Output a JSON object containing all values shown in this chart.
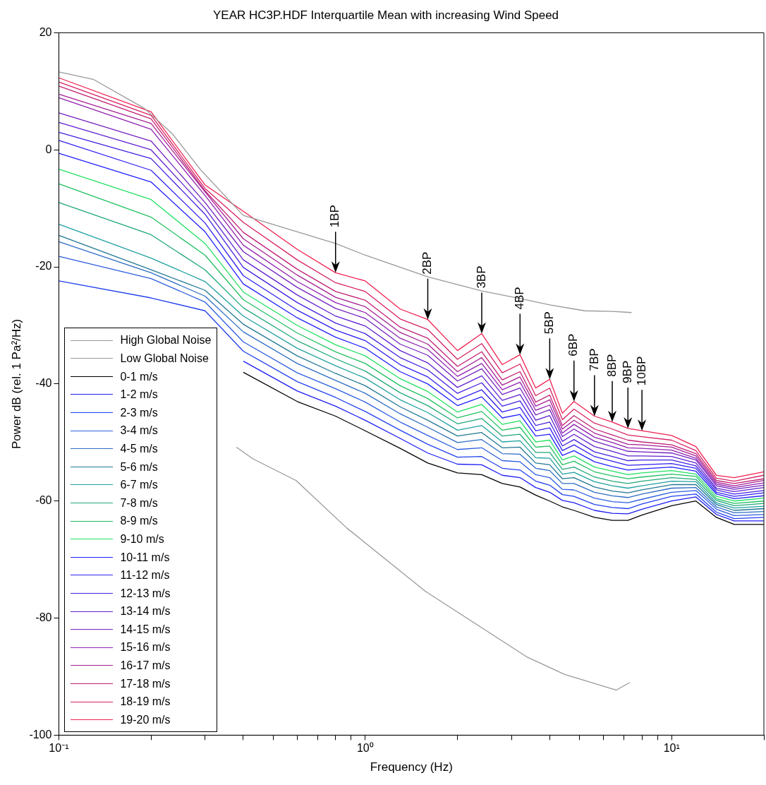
{
  "chart_data": {
    "type": "line",
    "title": "YEAR HC3P.HDF Interquartile Mean with increasing Wind Speed",
    "xlabel": "Frequency (Hz)",
    "ylabel": "Power dB (rel. 1 Pa²/Hz)",
    "log": "x",
    "legend": "bottom left",
    "marker": "none",
    "line_style": "solid",
    "xlim": [
      0.1,
      20
    ],
    "ylim": [
      -100,
      20
    ],
    "xticks": [
      {
        "value": 0.1,
        "label": "10⁻¹"
      },
      {
        "value": 0.2,
        "label": null
      },
      {
        "value": 0.3,
        "label": null
      },
      {
        "value": 0.4,
        "label": null
      },
      {
        "value": 0.5,
        "label": null
      },
      {
        "value": 0.6,
        "label": null
      },
      {
        "value": 0.7,
        "label": null
      },
      {
        "value": 0.8,
        "label": null
      },
      {
        "value": 0.9,
        "label": null
      },
      {
        "value": 1,
        "label": "10⁰"
      },
      {
        "value": 2,
        "label": null
      },
      {
        "value": 3,
        "label": null
      },
      {
        "value": 4,
        "label": null
      },
      {
        "value": 5,
        "label": null
      },
      {
        "value": 6,
        "label": null
      },
      {
        "value": 7,
        "label": null
      },
      {
        "value": 8,
        "label": null
      },
      {
        "value": 9,
        "label": null
      },
      {
        "value": 10,
        "label": "10¹"
      },
      {
        "value": 20,
        "label": null
      }
    ],
    "yticks": [
      -100,
      -80,
      -60,
      -40,
      -20,
      0,
      20
    ],
    "x": [
      0.1,
      0.2,
      0.3,
      0.4,
      0.6,
      0.8,
      1,
      1.3,
      1.6,
      2,
      2.4,
      2.8,
      3.2,
      3.6,
      4,
      4.4,
      4.8,
      5.6,
      6.4,
      7.2,
      8,
      10,
      12,
      14,
      16,
      20
    ],
    "series": [
      {
        "name": "High Global Noise",
        "color": "#999999",
        "x": [
          0.1,
          0.13,
          0.19,
          0.235,
          0.29,
          0.4,
          0.6,
          0.8,
          1,
          1.6,
          2.4,
          3.2,
          4,
          5.2,
          6.4,
          7.4
        ],
        "values": [
          13.3,
          12,
          7.1,
          2.7,
          -3.4,
          -11.2,
          -14,
          -16,
          -18,
          -21.7,
          -24.1,
          -25.4,
          -26.5,
          -27.5,
          -27.6,
          -27.8
        ]
      },
      {
        "name": "Low Global Noise",
        "color": "#999999",
        "x": [
          0.38,
          0.43,
          0.595,
          0.87,
          1.57,
          3.36,
          4.46,
          6.6,
          7.3
        ],
        "values": [
          -50.8,
          -52.8,
          -56.5,
          -64.6,
          -75.4,
          -86.6,
          -89.6,
          -92.3,
          -91
        ]
      },
      {
        "name": "0-1 m/s",
        "color": "#000000",
        "values": [
          null,
          null,
          null,
          -38,
          -43,
          -45.5,
          -48,
          -51,
          -53.5,
          -55.2,
          -55.5,
          -57,
          -57.6,
          -59,
          -60,
          -61,
          -61.6,
          -62.8,
          -63.3,
          -63.3,
          -62.4,
          -60.8,
          -60,
          -62.8,
          -64,
          -64
        ]
      },
      {
        "name": "1-2 m/s",
        "color": "#1c1cf5",
        "values": [
          null,
          null,
          null,
          -36.1,
          -41.2,
          -43.8,
          -46.2,
          -49.3,
          -51.8,
          -53.7,
          -53.8,
          -55.6,
          -56,
          -57.7,
          -58.5,
          -59.9,
          -60.3,
          -61.6,
          -62.1,
          -62.2,
          -61.4,
          -60,
          -59.3,
          -62.3,
          -63.4,
          -63.4
        ]
      },
      {
        "name": "2-3 m/s",
        "color": "#2040ee",
        "values": [
          -22.4,
          -25.3,
          -27.5,
          -34.4,
          -39.6,
          -42.3,
          -44.7,
          -47.9,
          -50.3,
          -52.5,
          -52.4,
          -54.4,
          -54.7,
          -56.6,
          -57.3,
          -58.9,
          -59.2,
          -60.6,
          -61.1,
          -61.3,
          -60.5,
          -59.2,
          -58.8,
          -61.9,
          -63,
          -62.8
        ]
      },
      {
        "name": "3-4 m/s",
        "color": "#2c5ee0",
        "values": [
          -18.2,
          -22,
          -26,
          -32.8,
          -38.1,
          -40.8,
          -43.1,
          -46.5,
          -48.8,
          -51.2,
          -50.9,
          -53.1,
          -53.3,
          -55.5,
          -56,
          -58,
          -58.1,
          -59.5,
          -60.1,
          -60.3,
          -59.7,
          -58.5,
          -58.2,
          -61.4,
          -62.5,
          -62.3
        ]
      },
      {
        "name": "4-5 m/s",
        "color": "#2c6cc4",
        "values": [
          -15.7,
          -21,
          -25,
          -31.1,
          -36.5,
          -39.4,
          -41.6,
          -45.1,
          -47.4,
          -50,
          -49.5,
          -51.9,
          -52,
          -54.4,
          -54.8,
          -57,
          -57,
          -58.5,
          -59.1,
          -59.4,
          -58.8,
          -57.8,
          -57.7,
          -61,
          -62,
          -61.8
        ]
      },
      {
        "name": "5-6 m/s",
        "color": "#207894",
        "values": [
          -14.6,
          -20.5,
          -24,
          -29.8,
          -35.2,
          -38.2,
          -40.3,
          -43.9,
          -46.2,
          -48.9,
          -48.3,
          -50.9,
          -50.8,
          -53.5,
          -53.8,
          -56.2,
          -56,
          -57.6,
          -58.3,
          -58.6,
          -58.1,
          -57.2,
          -57.2,
          -60.6,
          -61.6,
          -61.3
        ]
      },
      {
        "name": "6-7 m/s",
        "color": "#20a0a0",
        "values": [
          -12.7,
          -18.5,
          -22.5,
          -28.4,
          -33.9,
          -36.9,
          -39,
          -42.7,
          -44.9,
          -47.9,
          -47.1,
          -49.9,
          -49.7,
          -52.6,
          -52.7,
          -55.4,
          -55.1,
          -56.7,
          -57.4,
          -57.8,
          -57.4,
          -56.6,
          -56.7,
          -60.3,
          -61.2,
          -60.9
        ]
      },
      {
        "name": "7-8 m/s",
        "color": "#20a878",
        "values": [
          -9,
          -14.5,
          -20.5,
          -27,
          -32.6,
          -35.7,
          -37.8,
          -41.5,
          -43.7,
          -46.8,
          -45.9,
          -48.9,
          -48.6,
          -51.7,
          -51.7,
          -54.6,
          -54.2,
          -55.9,
          -56.6,
          -57,
          -56.6,
          -56,
          -56.3,
          -59.9,
          -60.8,
          -60.4
        ]
      },
      {
        "name": "8-9 m/s",
        "color": "#20c060",
        "values": [
          -5.8,
          -11.5,
          -18,
          -25.6,
          -31.3,
          -34.5,
          -36.5,
          -40.3,
          -42.5,
          -45.8,
          -44.7,
          -47.9,
          -47.4,
          -50.8,
          -50.6,
          -53.8,
          -53.2,
          -55,
          -55.7,
          -56.2,
          -55.9,
          -55.4,
          -55.8,
          -59.6,
          -60.4,
          -60
        ]
      },
      {
        "name": "9-10 m/s",
        "color": "#20e060",
        "values": [
          -3.3,
          -8.5,
          -16,
          -24.3,
          -30,
          -33.3,
          -35.2,
          -39.1,
          -41.3,
          -44.8,
          -43.5,
          -46.9,
          -46.3,
          -49.9,
          -49.6,
          -53,
          -52.3,
          -54.2,
          -54.9,
          -55.5,
          -55.2,
          -54.8,
          -55.4,
          -59.2,
          -60,
          -59.5
        ]
      },
      {
        "name": "10-11 m/s",
        "color": "#2020ff",
        "values": [
          -0.6,
          -5.5,
          -14,
          -22.9,
          -28.7,
          -32,
          -33.9,
          -37.9,
          -40,
          -43.7,
          -42.2,
          -45.8,
          -45.2,
          -48.9,
          -48.6,
          -52.2,
          -51.4,
          -53.3,
          -54.1,
          -54.7,
          -54.5,
          -54.2,
          -54.9,
          -58.8,
          -59.6,
          -59.1
        ]
      },
      {
        "name": "11-12 m/s",
        "color": "#3020f0",
        "values": [
          1.6,
          -3.5,
          -12.5,
          -21.5,
          -27.4,
          -30.8,
          -32.6,
          -36.7,
          -38.8,
          -42.7,
          -41,
          -44.8,
          -44,
          -48,
          -47.5,
          -51.4,
          -50.4,
          -52.4,
          -53.2,
          -53.9,
          -53.8,
          -53.6,
          -54.4,
          -58.5,
          -59.2,
          -58.6
        ]
      },
      {
        "name": "12-13 m/s",
        "color": "#4420e0",
        "values": [
          3,
          -1.5,
          -11,
          -20.1,
          -26.1,
          -29.6,
          -31.4,
          -35.5,
          -37.6,
          -41.6,
          -39.8,
          -43.8,
          -42.9,
          -47.1,
          -46.5,
          -50.6,
          -49.5,
          -51.6,
          -52.4,
          -53.1,
          -53,
          -53,
          -54,
          -58.1,
          -58.8,
          -58.2
        ]
      },
      {
        "name": "13-14 m/s",
        "color": "#6020d0",
        "values": [
          4.7,
          0,
          -10,
          -18.8,
          -24.8,
          -28.4,
          -30.1,
          -34.3,
          -36.4,
          -40.6,
          -38.6,
          -42.8,
          -41.8,
          -46.2,
          -45.4,
          -49.8,
          -48.6,
          -50.7,
          -51.5,
          -52.3,
          -52.3,
          -52.4,
          -53.5,
          -57.8,
          -58.4,
          -57.7
        ]
      },
      {
        "name": "14-15 m/s",
        "color": "#7420c0",
        "values": [
          6.3,
          1.5,
          -9,
          -17.4,
          -23.5,
          -27.1,
          -28.8,
          -33.2,
          -35.1,
          -39.5,
          -37.4,
          -41.8,
          -40.7,
          -45.3,
          -44.4,
          -49,
          -47.7,
          -49.8,
          -50.7,
          -51.5,
          -51.6,
          -51.8,
          -53,
          -57.4,
          -58,
          -57.3
        ]
      },
      {
        "name": "15-16 m/s",
        "color": "#9020b0",
        "values": [
          8.9,
          3.5,
          -7.8,
          -16.3,
          -22.5,
          -26.1,
          -27.8,
          -32.2,
          -34.1,
          -38.7,
          -36.5,
          -41,
          -39.7,
          -44.5,
          -43.6,
          -48.4,
          -46.9,
          -49.1,
          -50,
          -50.9,
          -51,
          -51.3,
          -52.7,
          -57.1,
          -57.7,
          -56.9
        ]
      },
      {
        "name": "16-17 m/s",
        "color": "#a42094",
        "values": [
          9.5,
          4.5,
          -7.2,
          -15.2,
          -21.4,
          -25.2,
          -26.8,
          -31.2,
          -33.2,
          -37.9,
          -35.5,
          -40.2,
          -38.8,
          -43.8,
          -42.7,
          -47.7,
          -46.2,
          -48.4,
          -49.4,
          -50.3,
          -50.4,
          -50.8,
          -52.3,
          -56.8,
          -57.4,
          -56.5
        ]
      },
      {
        "name": "17-18 m/s",
        "color": "#c02074",
        "values": [
          10.9,
          5.3,
          -7,
          -14.1,
          -20.4,
          -24.2,
          -25.7,
          -30.3,
          -32.2,
          -37,
          -34.5,
          -39.3,
          -37.9,
          -43.1,
          -41.9,
          -47.1,
          -45.4,
          -47.7,
          -48.7,
          -49.6,
          -49.9,
          -50.4,
          -51.9,
          -56.5,
          -57,
          -56.2
        ]
      },
      {
        "name": "18-19 m/s",
        "color": "#d62064",
        "values": [
          11.6,
          5.9,
          -6.6,
          -12.4,
          -18.8,
          -22.7,
          -24.2,
          -28.9,
          -30.7,
          -35.8,
          -33.1,
          -38.1,
          -36.6,
          -42,
          -40.7,
          -46.1,
          -44.3,
          -46.7,
          -47.7,
          -48.7,
          -49,
          -49.6,
          -51.4,
          -56.1,
          -56.6,
          -55.6
        ]
      },
      {
        "name": "19-20 m/s",
        "color": "#f02050",
        "values": [
          12.3,
          6.5,
          -6,
          -10.5,
          -17,
          -21,
          -22.4,
          -27.2,
          -29,
          -34.3,
          -31.4,
          -36.7,
          -35,
          -40.7,
          -39.2,
          -45,
          -43,
          -45.5,
          -46.5,
          -47.6,
          -48,
          -48.8,
          -50.7,
          -55.6,
          -56,
          -55
        ]
      }
    ],
    "annotations": [
      {
        "text": "1BP",
        "x": 0.8,
        "y": -21
      },
      {
        "text": "2BP",
        "x": 1.6,
        "y": -29
      },
      {
        "text": "3BP",
        "x": 2.4,
        "y": -31.4
      },
      {
        "text": "4BP",
        "x": 3.2,
        "y": -35
      },
      {
        "text": "5BP",
        "x": 4,
        "y": -39.2
      },
      {
        "text": "6BP",
        "x": 4.8,
        "y": -43
      },
      {
        "text": "7BP",
        "x": 5.6,
        "y": -45.5
      },
      {
        "text": "8BP",
        "x": 6.4,
        "y": -46.5
      },
      {
        "text": "9BP",
        "x": 7.2,
        "y": -47.6
      },
      {
        "text": "10BP",
        "x": 8,
        "y": -48
      }
    ]
  }
}
